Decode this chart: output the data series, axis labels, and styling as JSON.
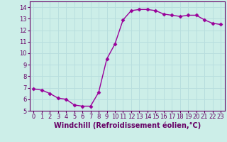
{
  "x": [
    0,
    1,
    2,
    3,
    4,
    5,
    6,
    7,
    8,
    9,
    10,
    11,
    12,
    13,
    14,
    15,
    16,
    17,
    18,
    19,
    20,
    21,
    22,
    23
  ],
  "y": [
    6.9,
    6.8,
    6.5,
    6.1,
    6.0,
    5.5,
    5.4,
    5.4,
    6.6,
    9.5,
    10.8,
    12.9,
    13.7,
    13.8,
    13.8,
    13.7,
    13.4,
    13.3,
    13.2,
    13.3,
    13.3,
    12.9,
    12.6,
    12.5
  ],
  "line_color": "#990099",
  "marker": "D",
  "marker_size": 2.5,
  "linewidth": 1.0,
  "xlabel": "Windchill (Refroidissement éolien,°C)",
  "xlim": [
    -0.5,
    23.5
  ],
  "ylim": [
    5,
    14.5
  ],
  "yticks": [
    5,
    6,
    7,
    8,
    9,
    10,
    11,
    12,
    13,
    14
  ],
  "xtick_labels": [
    "0",
    "1",
    "2",
    "3",
    "4",
    "5",
    "6",
    "7",
    "8",
    "9",
    "10",
    "11",
    "12",
    "13",
    "14",
    "15",
    "16",
    "17",
    "18",
    "19",
    "20",
    "21",
    "22",
    "23"
  ],
  "grid_color": "#b8dede",
  "background_color": "#cceee8",
  "tick_label_fontsize": 6,
  "xlabel_fontsize": 7,
  "ylabel_fontsize": 6
}
